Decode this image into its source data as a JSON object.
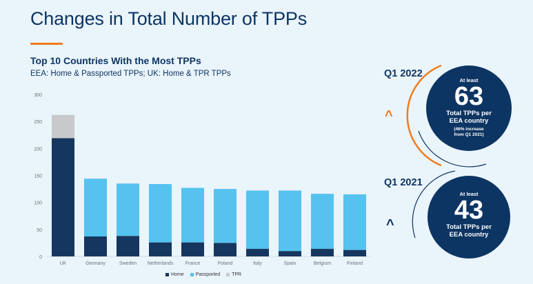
{
  "page_title": "Changes in Total Number of TPPs",
  "colors": {
    "navy": "#0d3563",
    "home": "#15365e",
    "passported": "#56c2ef",
    "tpr": "#c7c9cb",
    "orange": "#ee7d1b",
    "background": "#eaf4fb"
  },
  "chart_data": {
    "type": "bar",
    "stacked": true,
    "title": "Top 10 Countries With the Most TPPs",
    "subtitle": "EEA: Home & Passported TPPs; UK: Home & TPR TPPs",
    "categories": [
      "UK",
      "Germany",
      "Sweden",
      "Netherlands",
      "France",
      "Poland",
      "Italy",
      "Spain",
      "Belgium",
      "Finland"
    ],
    "series": [
      {
        "name": "Home",
        "values": [
          219,
          37,
          38,
          26,
          26,
          25,
          14,
          10,
          14,
          12
        ]
      },
      {
        "name": "Passported",
        "values": [
          0,
          107,
          97,
          108,
          101,
          100,
          108,
          112,
          102,
          103
        ]
      },
      {
        "name": "TPR",
        "values": [
          43,
          0,
          0,
          0,
          0,
          0,
          0,
          0,
          0,
          0
        ]
      }
    ],
    "yticks": [
      0,
      50,
      100,
      150,
      200,
      250,
      300
    ],
    "ylim": [
      0,
      300
    ],
    "xlabel": "",
    "ylabel": "",
    "legend": "bottom-center"
  },
  "q2022": {
    "label": "Q1 2022",
    "at_least": "At least",
    "number": "63",
    "desc_line1": "Total TPPs per",
    "desc_line2": "EEA country",
    "note_line1": "(46% increase",
    "note_line2": "from Q1 2021)",
    "chevron": "up-chevron-icon"
  },
  "q2021": {
    "label": "Q1 2021",
    "at_least": "At least",
    "number": "43",
    "desc_line1": "Total TPPs per",
    "desc_line2": "EEA country",
    "chevron": "up-chevron-icon"
  }
}
